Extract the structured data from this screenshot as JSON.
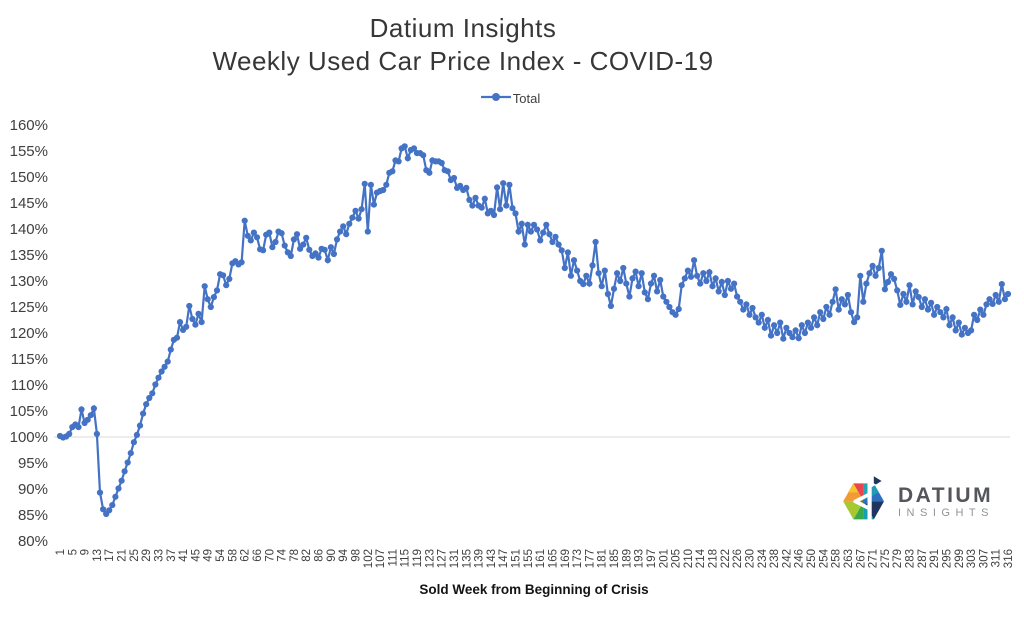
{
  "title": {
    "line1": "Datium Insights",
    "line2": "Weekly Used Car Price Index - COVID-19"
  },
  "legend": {
    "label": "Total"
  },
  "axes": {
    "y_tick_labels": [
      "160%",
      "155%",
      "150%",
      "145%",
      "140%",
      "135%",
      "130%",
      "125%",
      "120%",
      "115%",
      "110%",
      "105%",
      "100%",
      "95%",
      "90%",
      "85%",
      "80%"
    ],
    "x_axis_title": "Sold Week from Beginning of Crisis",
    "x_tick_every": 4
  },
  "branding": {
    "name": "DATIUM",
    "sub": "INSIGHTS"
  },
  "colors": {
    "series": "#4472C4",
    "gridline": "#D9D9D9",
    "axis_text": "#404040",
    "title_text": "#373737",
    "logo_text": "#54565B",
    "logo_subtext": "#919396"
  },
  "chart_data": {
    "type": "line",
    "title": "Datium Insights Weekly Used Car Price Index - COVID-19",
    "xlabel": "Sold Week from Beginning of Crisis",
    "ylabel": "",
    "ylim": [
      80,
      160
    ],
    "y_tick_step": 5,
    "y_format": "percent",
    "grid": "single reference gridline at 100%",
    "legend_position": "top-center",
    "series_name": "Total",
    "marker": "circle",
    "x": [
      1,
      2,
      3,
      4,
      5,
      6,
      7,
      8,
      9,
      10,
      11,
      12,
      13,
      14,
      15,
      16,
      17,
      18,
      19,
      20,
      21,
      22,
      23,
      24,
      25,
      26,
      27,
      28,
      29,
      30,
      31,
      32,
      33,
      34,
      35,
      36,
      37,
      38,
      39,
      40,
      41,
      42,
      43,
      44,
      45,
      46,
      47,
      48,
      49,
      50,
      51,
      52,
      54,
      55,
      56,
      57,
      58,
      59,
      60,
      61,
      62,
      63,
      64,
      65,
      66,
      67,
      68,
      69,
      70,
      71,
      72,
      73,
      74,
      75,
      76,
      77,
      78,
      79,
      80,
      81,
      82,
      83,
      84,
      85,
      86,
      87,
      88,
      89,
      90,
      91,
      92,
      93,
      94,
      95,
      96,
      97,
      98,
      99,
      100,
      101,
      102,
      103,
      104,
      105,
      107,
      108,
      109,
      110,
      111,
      112,
      113,
      114,
      115,
      116,
      117,
      118,
      119,
      120,
      121,
      122,
      123,
      124,
      125,
      126,
      127,
      128,
      129,
      130,
      131,
      132,
      133,
      134,
      135,
      136,
      137,
      138,
      139,
      140,
      141,
      142,
      143,
      144,
      145,
      146,
      147,
      148,
      149,
      150,
      151,
      152,
      153,
      154,
      155,
      156,
      157,
      158,
      161,
      162,
      163,
      164,
      165,
      166,
      167,
      168,
      169,
      170,
      171,
      172,
      173,
      174,
      175,
      176,
      177,
      178,
      179,
      180,
      181,
      182,
      183,
      184,
      185,
      186,
      187,
      188,
      189,
      190,
      191,
      192,
      193,
      194,
      195,
      196,
      197,
      198,
      199,
      200,
      201,
      202,
      203,
      204,
      205,
      206,
      207,
      208,
      210,
      211,
      212,
      213,
      214,
      215,
      216,
      217,
      218,
      219,
      220,
      221,
      222,
      223,
      224,
      225,
      226,
      227,
      228,
      229,
      230,
      231,
      232,
      233,
      234,
      235,
      236,
      237,
      238,
      239,
      240,
      241,
      242,
      243,
      244,
      245,
      246,
      247,
      248,
      249,
      250,
      251,
      252,
      253,
      254,
      255,
      256,
      257,
      258,
      259,
      260,
      261,
      263,
      264,
      265,
      266,
      267,
      268,
      269,
      270,
      271,
      272,
      273,
      274,
      275,
      276,
      277,
      278,
      279,
      280,
      281,
      282,
      283,
      284,
      285,
      286,
      287,
      288,
      289,
      290,
      291,
      292,
      293,
      294,
      295,
      296,
      297,
      298,
      299,
      300,
      301,
      302,
      303,
      304,
      305,
      306,
      307,
      308,
      309,
      310,
      311,
      312,
      313,
      314,
      316
    ],
    "y": [
      100.2,
      99.9,
      100.1,
      100.6,
      101.9,
      102.4,
      101.9,
      105.3,
      102.7,
      103.3,
      104.2,
      105.5,
      100.6,
      89.3,
      86.1,
      85.2,
      85.9,
      86.9,
      88.5,
      90.1,
      91.6,
      93.4,
      95.1,
      96.9,
      99.0,
      100.4,
      102.2,
      104.5,
      106.3,
      107.5,
      108.4,
      110.1,
      111.4,
      112.6,
      113.5,
      114.5,
      116.8,
      118.7,
      119.1,
      122.1,
      120.6,
      121.2,
      125.2,
      122.7,
      121.6,
      123.7,
      122.1,
      129.0,
      126.5,
      125.0,
      126.9,
      128.2,
      131.3,
      131.1,
      129.2,
      130.4,
      133.4,
      133.8,
      133.2,
      133.6,
      141.6,
      138.7,
      137.8,
      139.3,
      138.4,
      136.1,
      135.9,
      138.9,
      139.3,
      136.5,
      137.5,
      139.5,
      139.2,
      136.8,
      135.5,
      134.8,
      138.0,
      139.0,
      136.2,
      137.0,
      138.3,
      136.0,
      134.8,
      135.3,
      134.5,
      136.2,
      136.0,
      134.0,
      136.5,
      135.2,
      138.0,
      139.5,
      140.5,
      139.0,
      141.0,
      142.2,
      143.5,
      142.0,
      143.8,
      148.7,
      139.5,
      148.5,
      144.7,
      147.0,
      147.3,
      147.5,
      148.5,
      150.8,
      151.1,
      153.2,
      153.0,
      155.5,
      155.9,
      153.6,
      155.2,
      155.5,
      154.6,
      154.6,
      154.2,
      151.3,
      150.8,
      153.2,
      153.0,
      153.0,
      152.7,
      151.3,
      151.1,
      149.4,
      149.8,
      147.9,
      148.3,
      147.5,
      147.9,
      145.6,
      144.5,
      146.0,
      144.5,
      144.1,
      145.8,
      143.0,
      143.5,
      142.7,
      148.0,
      143.8,
      148.8,
      144.5,
      148.5,
      144.0,
      143.0,
      139.5,
      141.0,
      137.0,
      140.8,
      139.5,
      140.8,
      139.9,
      137.8,
      139.3,
      140.8,
      139.0,
      137.5,
      138.5,
      137.0,
      135.9,
      132.5,
      135.5,
      131.0,
      134.0,
      132.0,
      130.0,
      129.4,
      131.0,
      129.5,
      133.0,
      137.5,
      131.5,
      129.0,
      132.0,
      127.5,
      125.2,
      128.5,
      131.5,
      130.0,
      132.5,
      129.5,
      127.0,
      130.5,
      131.8,
      129.0,
      131.5,
      127.8,
      126.5,
      129.5,
      131.0,
      128.0,
      130.2,
      127.0,
      126.0,
      125.0,
      124.0,
      123.5,
      124.6,
      129.2,
      130.5,
      132.0,
      130.8,
      134.0,
      131.0,
      129.5,
      131.5,
      130.0,
      131.7,
      129.0,
      130.5,
      128.0,
      129.8,
      127.3,
      130.0,
      128.5,
      129.5,
      127.0,
      126.0,
      124.5,
      125.5,
      123.5,
      124.8,
      123.0,
      122.0,
      123.5,
      121.0,
      122.5,
      119.5,
      121.5,
      120.0,
      122.0,
      118.9,
      121.0,
      120.0,
      119.2,
      120.5,
      119.0,
      121.5,
      120.0,
      122.0,
      121.0,
      123.0,
      121.5,
      124.0,
      122.7,
      125.0,
      123.5,
      126.0,
      128.4,
      124.5,
      126.5,
      125.5,
      127.3,
      124.0,
      122.1,
      123.0,
      131.0,
      126.0,
      129.5,
      131.5,
      132.9,
      131.0,
      132.5,
      135.8,
      128.4,
      129.8,
      131.3,
      130.4,
      128.2,
      125.4,
      127.5,
      126.0,
      129.2,
      125.5,
      128.0,
      126.9,
      125.0,
      126.5,
      124.5,
      125.8,
      123.5,
      125.0,
      124.0,
      123.0,
      124.6,
      121.5,
      123.0,
      120.5,
      122.0,
      119.7,
      121.0,
      120.0,
      120.5,
      123.5,
      122.5,
      124.5,
      123.5,
      125.5,
      126.5,
      125.6,
      127.3,
      126.0,
      129.4,
      126.5,
      127.5
    ]
  }
}
